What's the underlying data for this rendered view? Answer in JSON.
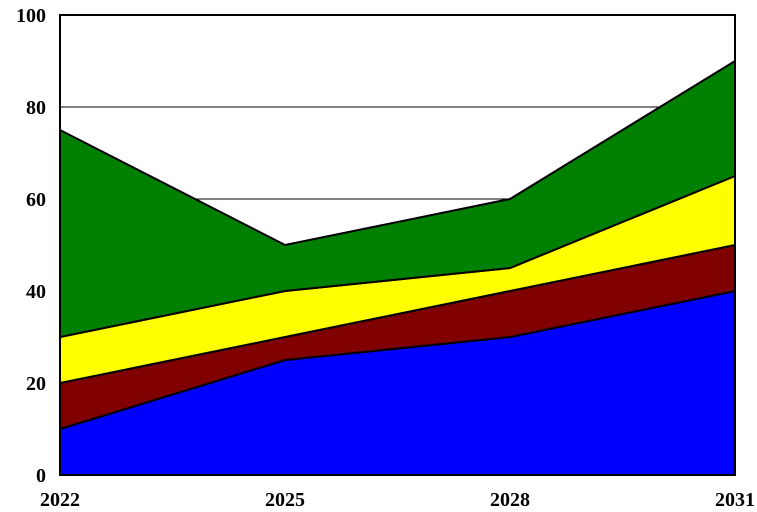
{
  "chart_data": {
    "type": "area",
    "stacked": true,
    "x": [
      "2022",
      "2025",
      "2028",
      "2031"
    ],
    "series": [
      {
        "color": "#0000ff",
        "values": [
          10,
          25,
          30,
          40
        ]
      },
      {
        "color": "#800000",
        "values": [
          10,
          5,
          10,
          10
        ]
      },
      {
        "color": "#ffff00",
        "values": [
          10,
          10,
          5,
          15
        ]
      },
      {
        "color": "#008000",
        "values": [
          45,
          10,
          15,
          25
        ]
      }
    ],
    "ylim": [
      0,
      100
    ],
    "yticks": [
      "0",
      "20",
      "40",
      "60",
      "80",
      "100"
    ],
    "xticks": [
      "2022",
      "2025",
      "2028",
      "2031"
    ],
    "grid": true,
    "legend": "none"
  }
}
